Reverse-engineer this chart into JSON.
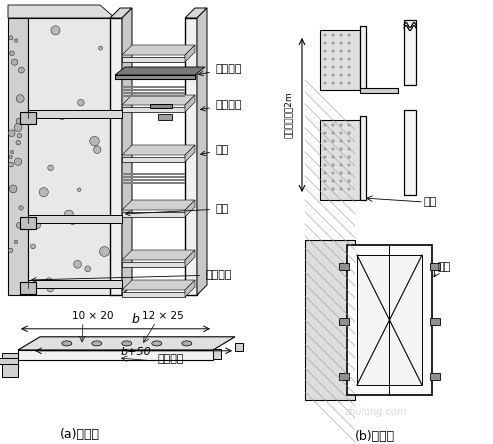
{
  "bg_color": "#ffffff",
  "black": "#000000",
  "gray_light": "#e8e8e8",
  "gray_med": "#cccccc",
  "gray_dark": "#888888",
  "label_a": "(a)方式一",
  "label_b": "(b)方式二",
  "lbl_gudingya": "固定压板",
  "lbl_lianjie": "连接螺栓",
  "lbl_qiaojia": "桥架",
  "lbl_tuobi": "托臂",
  "lbl_pengzhang": "膊胀螺栓",
  "lbl_channel": "槽锤",
  "lbl_flat": "扁锤托臂",
  "lbl_dim1": "10 × 20",
  "lbl_dim2": "12 × 25",
  "lbl_b": "b",
  "lbl_b50": "b+50",
  "lbl_spacing": "固定间距小于2m",
  "watermark": "zhulong.com"
}
